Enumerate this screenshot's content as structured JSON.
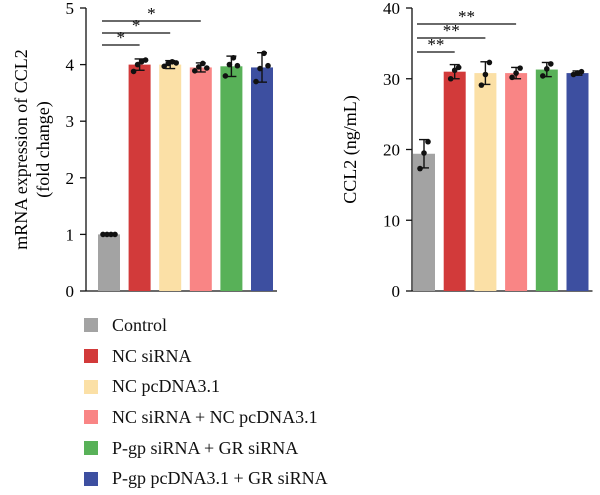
{
  "colors": {
    "Control": "#a3a3a3",
    "NC siRNA": "#d23a3a",
    "NC pcDNA3.1": "#fbe0a6",
    "NC siRNA + NC pcDNA3.1": "#f98585",
    "P-gp siRNA + GR siRNA": "#58b158",
    "P-gp pcDNA3.1 + GR siRNA": "#3d4fa0"
  },
  "legend": [
    "Control",
    "NC siRNA",
    "NC pcDNA3.1",
    "NC siRNA + NC pcDNA3.1",
    "P-gp siRNA + GR siRNA",
    "P-gp pcDNA3.1 + GR siRNA"
  ],
  "chart_data": [
    {
      "type": "bar",
      "ylabel_lines": [
        "mRNA expression of CCL2",
        "(fold change)"
      ],
      "ylim": [
        0,
        5
      ],
      "yticks": [
        0,
        1,
        2,
        3,
        4,
        5
      ],
      "categories": [
        "Control",
        "NC siRNA",
        "NC pcDNA3.1",
        "NC siRNA + NC pcDNA3.1",
        "P-gp siRNA + GR siRNA",
        "P-gp pcDNA3.1 + GR siRNA"
      ],
      "values": [
        1.0,
        4.0,
        4.0,
        3.95,
        3.97,
        3.95
      ],
      "errors": [
        0.0,
        0.1,
        0.07,
        0.08,
        0.18,
        0.26
      ],
      "points": [
        [
          1.0,
          1.0,
          1.0,
          1.0
        ],
        [
          3.88,
          4.0,
          4.05,
          4.08
        ],
        [
          3.97,
          4.02,
          4.05,
          4.03
        ],
        [
          3.89,
          3.96,
          4.02,
          3.94
        ],
        [
          3.8,
          4.0,
          4.12,
          3.98
        ],
        [
          3.7,
          3.93,
          4.2,
          3.98
        ]
      ],
      "significance": [
        {
          "from": 0,
          "to": 1,
          "label": "*"
        },
        {
          "from": 0,
          "to": 2,
          "label": "*"
        },
        {
          "from": 0,
          "to": 3,
          "label": "*"
        }
      ]
    },
    {
      "type": "bar",
      "ylabel_lines": [
        "CCL2 (ng/mL)"
      ],
      "ylim": [
        0,
        40
      ],
      "yticks": [
        0,
        10,
        20,
        30,
        40
      ],
      "categories": [
        "Control",
        "NC siRNA",
        "NC pcDNA3.1",
        "NC siRNA + NC pcDNA3.1",
        "P-gp siRNA + GR siRNA",
        "P-gp pcDNA3.1 + GR siRNA"
      ],
      "values": [
        19.4,
        31.0,
        30.8,
        30.8,
        31.3,
        30.8
      ],
      "errors": [
        2.0,
        1.0,
        1.6,
        0.8,
        1.0,
        0.3
      ],
      "points": [
        [
          17.3,
          19.5,
          21.1
        ],
        [
          30.0,
          31.2,
          31.6
        ],
        [
          29.1,
          30.6,
          32.3
        ],
        [
          30.2,
          30.8,
          31.5
        ],
        [
          30.4,
          31.4,
          32.1
        ],
        [
          30.6,
          30.8,
          31.0
        ]
      ],
      "significance": [
        {
          "from": 0,
          "to": 1,
          "label": "**"
        },
        {
          "from": 0,
          "to": 2,
          "label": "**"
        },
        {
          "from": 0,
          "to": 3,
          "label": "**"
        }
      ]
    }
  ]
}
